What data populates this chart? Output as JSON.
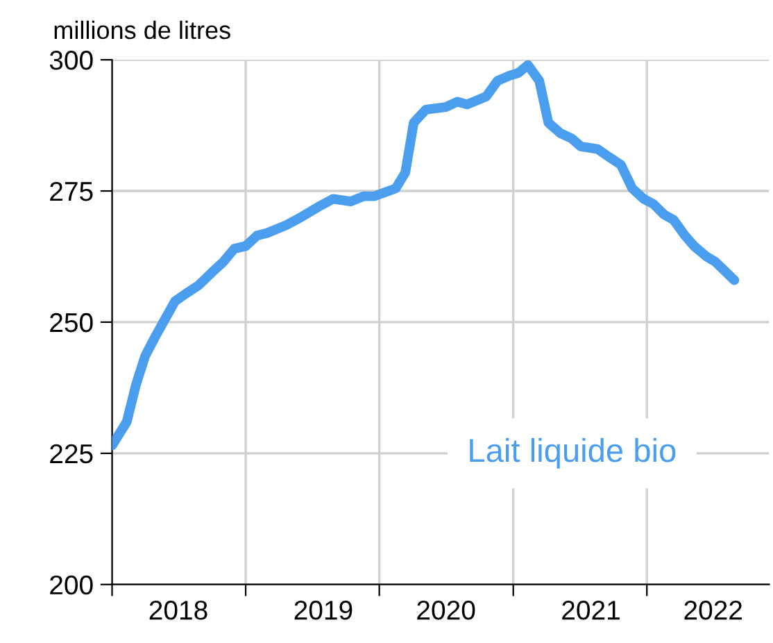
{
  "chart_data": {
    "type": "line",
    "ylabel": "millions de litres",
    "annotations": [
      "Lait liquide bio"
    ],
    "x": [
      "2018-01-01",
      "2018-02-10",
      "2018-03-07",
      "2018-04-01",
      "2018-05-01",
      "2018-06-22",
      "2018-07-23",
      "2018-08-25",
      "2018-10-01",
      "2018-11-01",
      "2018-12-01",
      "2019-01-01",
      "2019-02-01",
      "2019-03-01",
      "2019-04-22",
      "2019-06-01",
      "2019-07-19",
      "2019-08-28",
      "2019-10-15",
      "2019-11-19",
      "2019-12-19",
      "2020-02-15",
      "2020-03-12",
      "2020-04-04",
      "2020-05-07",
      "2020-07-01",
      "2020-08-01",
      "2020-08-28",
      "2020-10-19",
      "2020-11-19",
      "2020-12-22",
      "2021-01-15",
      "2021-02-10",
      "2021-03-13",
      "2021-04-07",
      "2021-05-10",
      "2021-06-10",
      "2021-07-04",
      "2021-08-19",
      "2021-09-19",
      "2021-10-22",
      "2021-11-22",
      "2021-12-23",
      "2022-01-19",
      "2022-02-17",
      "2022-03-15",
      "2022-04-15",
      "2022-05-10",
      "2022-06-13",
      "2022-07-07",
      "2022-08-28"
    ],
    "series": [
      {
        "color": "#4a9eed",
        "values": [
          226.5,
          231,
          238,
          243.5,
          247.5,
          254,
          255.5,
          257,
          259.5,
          261.5,
          264,
          264.5,
          266.5,
          267,
          268.5,
          270,
          272,
          273.5,
          273,
          274,
          274,
          275.5,
          278.5,
          288,
          290.5,
          291,
          292,
          291.5,
          293,
          296,
          297,
          297.5,
          299,
          296,
          288,
          286,
          285,
          283.5,
          283,
          281.5,
          280,
          275.5,
          273.5,
          272.5,
          270.5,
          269.5,
          266.5,
          264.5,
          262.5,
          261.5,
          258
        ]
      }
    ],
    "xlim": [
      "2018-01-01",
      "2022-12-01"
    ],
    "xticks": [
      {
        "value": "2018-01-01",
        "label": null
      },
      {
        "value": "2018-07-01",
        "label": "2018"
      },
      {
        "value": "2019-01-01",
        "label": null
      },
      {
        "value": "2019-08-01",
        "label": "2019"
      },
      {
        "value": "2020-01-01",
        "label": null
      },
      {
        "value": "2020-07-01",
        "label": "2020"
      },
      {
        "value": "2021-01-01",
        "label": null
      },
      {
        "value": "2021-08-01",
        "label": "2021"
      },
      {
        "value": "2022-01-01",
        "label": null
      },
      {
        "value": "2022-07-01",
        "label": "2022"
      }
    ],
    "ylim": [
      200,
      300
    ],
    "yticks": [
      200,
      225,
      250,
      275,
      300
    ],
    "grid": true,
    "marker": "none",
    "line_style": "solid"
  }
}
